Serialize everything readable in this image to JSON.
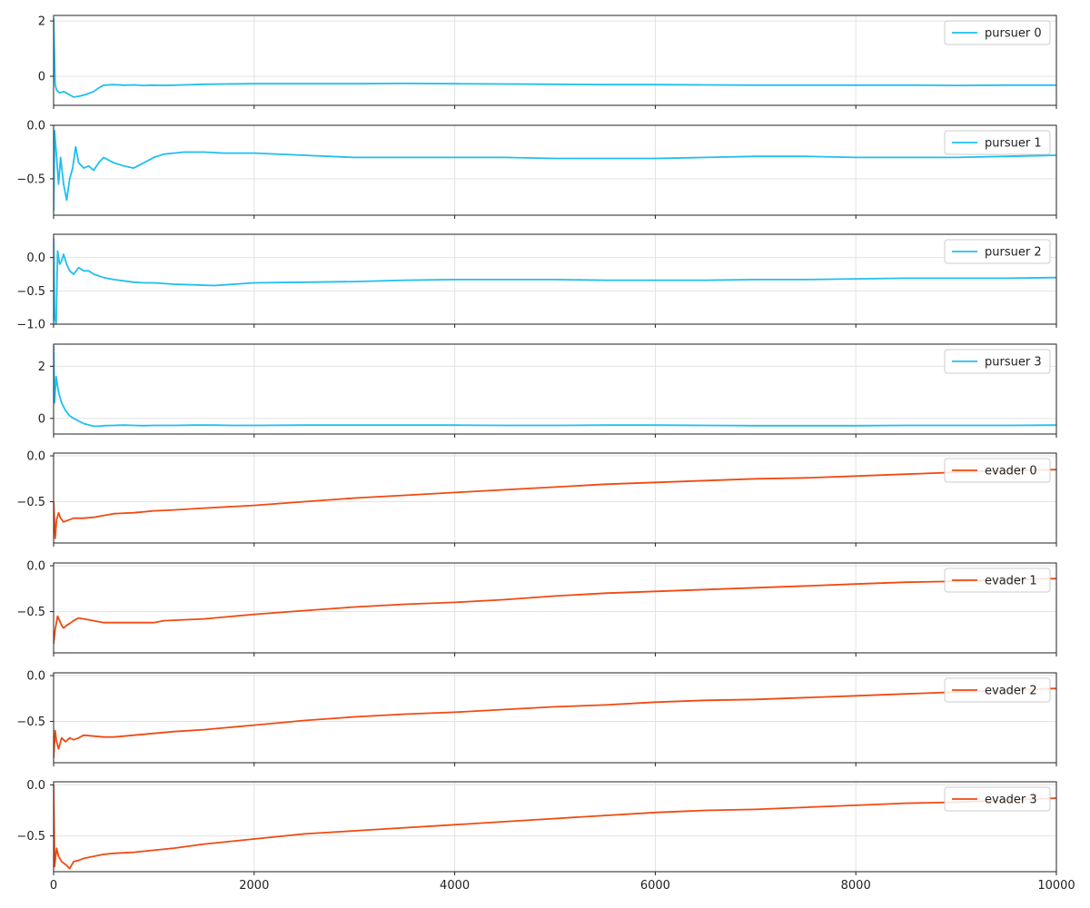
{
  "chart_data": [
    {
      "type": "line",
      "legend": "pursuer 0",
      "legend_position": "top-right",
      "color": "#1fbff0",
      "grid": true,
      "xlim": [
        0,
        10000
      ],
      "ylim": [
        -1.05,
        2.2
      ],
      "yticks": [
        {
          "value": 0,
          "label": "0"
        },
        {
          "value": 2,
          "label": "2"
        }
      ],
      "x": [
        0,
        15,
        30,
        60,
        100,
        150,
        200,
        260,
        320,
        400,
        450,
        500,
        600,
        700,
        800,
        900,
        1000,
        1100,
        1200,
        1300,
        1400,
        1500,
        1700,
        2000,
        2500,
        3000,
        3500,
        4000,
        4500,
        5000,
        5500,
        6000,
        6500,
        7000,
        7500,
        8000,
        8500,
        9000,
        9500,
        10000
      ],
      "y": [
        2.1,
        -0.3,
        -0.5,
        -0.6,
        -0.55,
        -0.65,
        -0.75,
        -0.72,
        -0.66,
        -0.55,
        -0.42,
        -0.32,
        -0.3,
        -0.32,
        -0.31,
        -0.33,
        -0.32,
        -0.33,
        -0.32,
        -0.31,
        -0.3,
        -0.29,
        -0.28,
        -0.27,
        -0.27,
        -0.27,
        -0.26,
        -0.27,
        -0.28,
        -0.29,
        -0.3,
        -0.3,
        -0.31,
        -0.32,
        -0.32,
        -0.32,
        -0.32,
        -0.33,
        -0.32,
        -0.32
      ]
    },
    {
      "type": "line",
      "legend": "pursuer 1",
      "legend_position": "top-right",
      "color": "#1fbff0",
      "grid": true,
      "xlim": [
        0,
        10000
      ],
      "ylim": [
        -0.84,
        0.0
      ],
      "yticks": [
        {
          "value": -0.5,
          "label": "−0.5"
        },
        {
          "value": 0.0,
          "label": "0.0"
        }
      ],
      "x": [
        0,
        10,
        30,
        50,
        70,
        100,
        130,
        160,
        190,
        220,
        250,
        300,
        350,
        400,
        450,
        500,
        600,
        700,
        800,
        900,
        1000,
        1100,
        1200,
        1300,
        1400,
        1500,
        1700,
        2000,
        2500,
        3000,
        3500,
        4000,
        4500,
        5000,
        5500,
        6000,
        6500,
        7000,
        7500,
        8000,
        8500,
        9000,
        9500,
        10000
      ],
      "y": [
        -0.8,
        -0.05,
        -0.3,
        -0.55,
        -0.3,
        -0.55,
        -0.7,
        -0.5,
        -0.4,
        -0.2,
        -0.35,
        -0.4,
        -0.38,
        -0.42,
        -0.35,
        -0.3,
        -0.35,
        -0.38,
        -0.4,
        -0.35,
        -0.3,
        -0.27,
        -0.26,
        -0.25,
        -0.25,
        -0.25,
        -0.26,
        -0.26,
        -0.28,
        -0.3,
        -0.3,
        -0.3,
        -0.3,
        -0.31,
        -0.31,
        -0.31,
        -0.3,
        -0.29,
        -0.29,
        -0.3,
        -0.3,
        -0.3,
        -0.29,
        -0.28
      ]
    },
    {
      "type": "line",
      "legend": "pursuer 2",
      "legend_position": "top-right",
      "color": "#1fbff0",
      "grid": true,
      "xlim": [
        0,
        10000
      ],
      "ylim": [
        -1.0,
        0.35
      ],
      "yticks": [
        {
          "value": -1.0,
          "label": "−1.0"
        },
        {
          "value": -0.5,
          "label": "−0.5"
        },
        {
          "value": 0.0,
          "label": "0.0"
        }
      ],
      "x": [
        0,
        10,
        25,
        40,
        60,
        80,
        100,
        130,
        160,
        200,
        250,
        300,
        350,
        400,
        500,
        600,
        700,
        800,
        900,
        1000,
        1200,
        1400,
        1600,
        1800,
        2000,
        2500,
        3000,
        3500,
        4000,
        4500,
        5000,
        5500,
        6000,
        6500,
        7000,
        7500,
        8000,
        8500,
        9000,
        9500,
        10000
      ],
      "y": [
        0.3,
        -0.9,
        -1.0,
        0.1,
        -0.1,
        -0.05,
        0.05,
        -0.1,
        -0.2,
        -0.25,
        -0.15,
        -0.2,
        -0.2,
        -0.25,
        -0.3,
        -0.33,
        -0.35,
        -0.37,
        -0.38,
        -0.38,
        -0.4,
        -0.41,
        -0.42,
        -0.4,
        -0.38,
        -0.37,
        -0.36,
        -0.34,
        -0.33,
        -0.33,
        -0.33,
        -0.34,
        -0.34,
        -0.34,
        -0.33,
        -0.33,
        -0.32,
        -0.31,
        -0.31,
        -0.31,
        -0.3
      ]
    },
    {
      "type": "line",
      "legend": "pursuer 3",
      "legend_position": "top-right",
      "color": "#1fbff0",
      "grid": true,
      "xlim": [
        0,
        10000
      ],
      "ylim": [
        -0.6,
        2.85
      ],
      "yticks": [
        {
          "value": 0,
          "label": "0"
        },
        {
          "value": 2,
          "label": "2"
        }
      ],
      "x": [
        0,
        10,
        25,
        50,
        80,
        120,
        160,
        200,
        250,
        300,
        350,
        400,
        450,
        500,
        600,
        700,
        800,
        900,
        1000,
        1200,
        1400,
        1600,
        1800,
        2000,
        2500,
        3000,
        3500,
        4000,
        4500,
        5000,
        5500,
        6000,
        6500,
        7000,
        7500,
        8000,
        8500,
        9000,
        9500,
        10000
      ],
      "y": [
        2.8,
        0.6,
        1.6,
        1.0,
        0.6,
        0.3,
        0.1,
        0.0,
        -0.1,
        -0.2,
        -0.25,
        -0.3,
        -0.3,
        -0.28,
        -0.27,
        -0.26,
        -0.27,
        -0.28,
        -0.27,
        -0.27,
        -0.26,
        -0.26,
        -0.27,
        -0.27,
        -0.26,
        -0.26,
        -0.26,
        -0.26,
        -0.27,
        -0.27,
        -0.26,
        -0.26,
        -0.27,
        -0.28,
        -0.28,
        -0.28,
        -0.27,
        -0.27,
        -0.27,
        -0.26
      ]
    },
    {
      "type": "line",
      "legend": "evader 0",
      "legend_position": "top-right",
      "color": "#f04a10",
      "grid": true,
      "xlim": [
        0,
        10000
      ],
      "ylim": [
        -0.95,
        0.03
      ],
      "yticks": [
        {
          "value": -0.5,
          "label": "−0.5"
        },
        {
          "value": 0.0,
          "label": "0.0"
        }
      ],
      "x": [
        0,
        15,
        30,
        50,
        70,
        100,
        150,
        200,
        300,
        400,
        500,
        600,
        800,
        1000,
        1200,
        1500,
        2000,
        2500,
        3000,
        3500,
        4000,
        4500,
        5000,
        5500,
        6000,
        6500,
        7000,
        7500,
        8000,
        8500,
        9000,
        9500,
        10000
      ],
      "y": [
        -0.5,
        -0.9,
        -0.7,
        -0.62,
        -0.68,
        -0.72,
        -0.7,
        -0.68,
        -0.68,
        -0.67,
        -0.65,
        -0.63,
        -0.62,
        -0.6,
        -0.59,
        -0.57,
        -0.54,
        -0.5,
        -0.46,
        -0.43,
        -0.4,
        -0.37,
        -0.34,
        -0.31,
        -0.29,
        -0.27,
        -0.25,
        -0.24,
        -0.22,
        -0.2,
        -0.18,
        -0.16,
        -0.15
      ]
    },
    {
      "type": "line",
      "legend": "evader 1",
      "legend_position": "top-right",
      "color": "#f04a10",
      "grid": true,
      "xlim": [
        0,
        10000
      ],
      "ylim": [
        -0.95,
        0.03
      ],
      "yticks": [
        {
          "value": -0.5,
          "label": "−0.5"
        },
        {
          "value": 0.0,
          "label": "0.0"
        }
      ],
      "x": [
        0,
        15,
        40,
        60,
        80,
        100,
        130,
        160,
        200,
        250,
        300,
        400,
        500,
        700,
        900,
        1000,
        1100,
        1300,
        1500,
        2000,
        2500,
        3000,
        3500,
        4000,
        4500,
        5000,
        5500,
        6000,
        6500,
        7000,
        7500,
        8000,
        8500,
        9000,
        9500,
        10000
      ],
      "y": [
        -0.85,
        -0.7,
        -0.55,
        -0.6,
        -0.65,
        -0.68,
        -0.65,
        -0.63,
        -0.6,
        -0.57,
        -0.58,
        -0.6,
        -0.62,
        -0.62,
        -0.62,
        -0.62,
        -0.6,
        -0.59,
        -0.58,
        -0.53,
        -0.49,
        -0.45,
        -0.42,
        -0.4,
        -0.37,
        -0.33,
        -0.3,
        -0.28,
        -0.26,
        -0.24,
        -0.22,
        -0.2,
        -0.18,
        -0.17,
        -0.15,
        -0.14
      ]
    },
    {
      "type": "line",
      "legend": "evader 2",
      "legend_position": "top-right",
      "color": "#f04a10",
      "grid": true,
      "xlim": [
        0,
        10000
      ],
      "ylim": [
        -0.95,
        0.03
      ],
      "yticks": [
        {
          "value": -0.5,
          "label": "−0.5"
        },
        {
          "value": 0.0,
          "label": "0.0"
        }
      ],
      "x": [
        0,
        15,
        30,
        50,
        80,
        120,
        160,
        200,
        250,
        300,
        400,
        500,
        600,
        800,
        1000,
        1200,
        1500,
        2000,
        2500,
        3000,
        3500,
        4000,
        4500,
        5000,
        5500,
        6000,
        6500,
        7000,
        7500,
        8000,
        8500,
        9000,
        9500,
        10000
      ],
      "y": [
        -0.9,
        -0.6,
        -0.72,
        -0.8,
        -0.68,
        -0.72,
        -0.68,
        -0.7,
        -0.68,
        -0.65,
        -0.66,
        -0.67,
        -0.67,
        -0.65,
        -0.63,
        -0.61,
        -0.59,
        -0.54,
        -0.49,
        -0.45,
        -0.42,
        -0.4,
        -0.37,
        -0.34,
        -0.32,
        -0.29,
        -0.27,
        -0.26,
        -0.24,
        -0.22,
        -0.2,
        -0.18,
        -0.16,
        -0.14
      ]
    },
    {
      "type": "line",
      "legend": "evader 3",
      "legend_position": "top-right",
      "color": "#f04a10",
      "grid": true,
      "xlim": [
        0,
        10000
      ],
      "ylim": [
        -0.85,
        0.03
      ],
      "yticks": [
        {
          "value": -0.5,
          "label": "−0.5"
        },
        {
          "value": 0.0,
          "label": "0.0"
        }
      ],
      "x": [
        0,
        10,
        30,
        50,
        80,
        120,
        160,
        200,
        250,
        300,
        400,
        500,
        600,
        800,
        1000,
        1200,
        1500,
        2000,
        2500,
        3000,
        3500,
        4000,
        4500,
        5000,
        5500,
        6000,
        6500,
        7000,
        7500,
        8000,
        8500,
        9000,
        9500,
        10000
      ],
      "y": [
        0.0,
        -0.8,
        -0.62,
        -0.7,
        -0.75,
        -0.78,
        -0.82,
        -0.75,
        -0.74,
        -0.72,
        -0.7,
        -0.68,
        -0.67,
        -0.66,
        -0.64,
        -0.62,
        -0.58,
        -0.53,
        -0.48,
        -0.45,
        -0.42,
        -0.39,
        -0.36,
        -0.33,
        -0.3,
        -0.27,
        -0.25,
        -0.24,
        -0.22,
        -0.2,
        -0.18,
        -0.17,
        -0.15,
        -0.13
      ]
    }
  ],
  "x_axis": {
    "ticks": [
      {
        "value": 0,
        "label": "0"
      },
      {
        "value": 2000,
        "label": "2000"
      },
      {
        "value": 4000,
        "label": "4000"
      },
      {
        "value": 6000,
        "label": "6000"
      },
      {
        "value": 8000,
        "label": "8000"
      },
      {
        "value": 10000,
        "label": "10000"
      }
    ]
  }
}
